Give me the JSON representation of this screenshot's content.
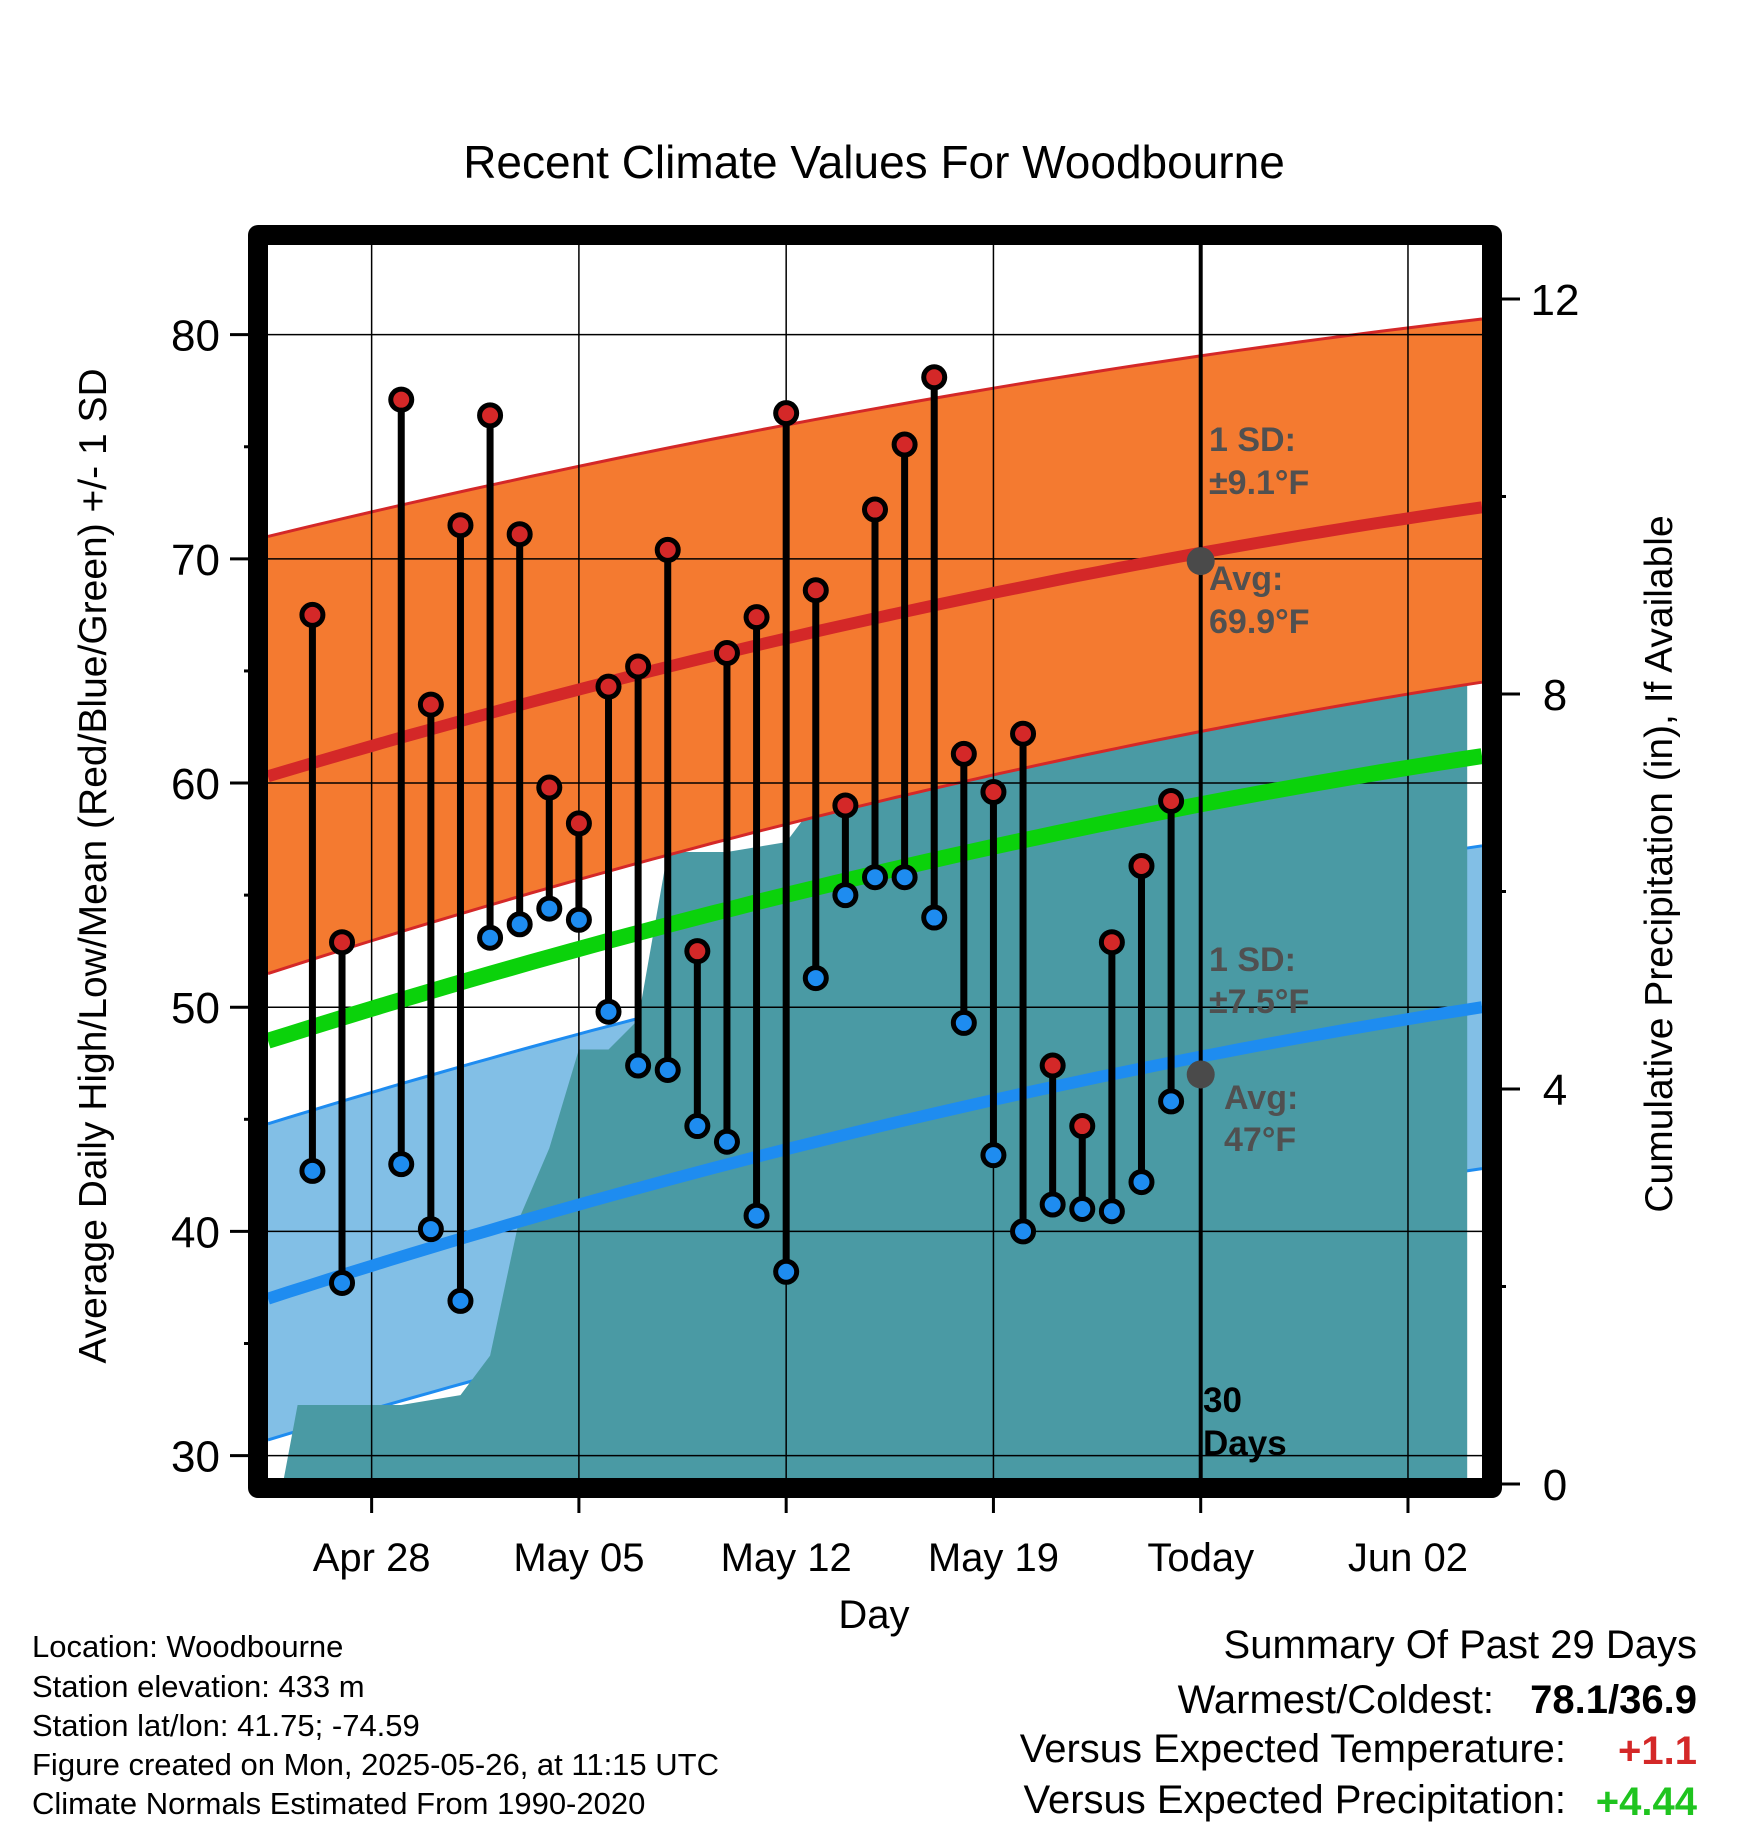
{
  "chart_data": {
    "type": "line",
    "title": "Recent Climate Values For Woodbourne",
    "xlabel": "Day",
    "ylabel_left": "Average Daily High/Low/Mean (Red/Blue/Green) +/- 1 SD",
    "ylabel_right": "Cumulative Precipitation (in), If Available",
    "x_tick_labels": [
      "Apr 28",
      "May 05",
      "May 12",
      "May 19",
      "Today",
      "Jun 02"
    ],
    "x_tick_days": [
      3,
      10,
      17,
      24,
      31,
      38
    ],
    "xlim_days": [
      -0.5,
      40.5
    ],
    "ylim_left": [
      29,
      84
    ],
    "y_left_ticks": [
      30,
      40,
      50,
      60,
      70,
      80
    ],
    "ylim_right": [
      0,
      20
    ],
    "y_right_ticks": [
      0,
      4,
      8,
      12
    ],
    "today_day": 31,
    "days_label": [
      "30",
      "Days"
    ],
    "colors": {
      "high_band": "#f47a30",
      "high_line": "#d42828",
      "low_band": "#82bfe6",
      "low_line": "#1e8cf0",
      "mean_line": "#0bd20b",
      "precip": "#4a9aa4",
      "high_marker": "#d42828",
      "low_marker": "#1e8cf0",
      "annotation": "#505050"
    },
    "normals": {
      "avg_high": {
        "start": 60.3,
        "end": 72.3
      },
      "high_sd_upper": {
        "start": 71.0,
        "end": 80.7
      },
      "high_sd_lower": {
        "start": 51.5,
        "end": 64.5
      },
      "avg_low": {
        "start": 37.0,
        "end": 50.0
      },
      "low_sd_upper": {
        "start": 44.8,
        "end": 57.2
      },
      "low_sd_lower": {
        "start": 30.7,
        "end": 42.8
      },
      "avg_mean": {
        "start": 48.5,
        "end": 61.2
      }
    },
    "annotations": {
      "high_sd_label": "1 SD:",
      "high_sd_value": "±9.1°F",
      "high_avg_label": "Avg:",
      "high_avg_value": "69.9°F",
      "low_sd_label": "1 SD:",
      "low_sd_value": "±7.5°F",
      "low_avg_label": "Avg:",
      "low_avg_value": "47°F",
      "today_high_avg": 69.9,
      "today_low_avg": 47.0
    },
    "series": [
      {
        "name": "High",
        "days": [
          1,
          2,
          4,
          5,
          6,
          7,
          8,
          9,
          10,
          11,
          12,
          13,
          14,
          15,
          16,
          17,
          18,
          19,
          20,
          21,
          22,
          23,
          24,
          25,
          26,
          27,
          28,
          29,
          30
        ],
        "values": [
          67.5,
          52.9,
          77.1,
          63.5,
          71.5,
          76.4,
          71.1,
          59.8,
          58.2,
          64.3,
          65.2,
          70.4,
          52.5,
          65.8,
          67.4,
          76.5,
          68.6,
          59.0,
          72.2,
          75.1,
          78.1,
          61.3,
          59.6,
          62.2,
          47.4,
          44.7,
          52.9,
          56.3,
          59.2
        ]
      },
      {
        "name": "Low",
        "days": [
          1,
          2,
          4,
          5,
          6,
          7,
          8,
          9,
          10,
          11,
          12,
          13,
          14,
          15,
          16,
          17,
          18,
          19,
          20,
          21,
          22,
          23,
          24,
          25,
          26,
          27,
          28,
          29,
          30
        ],
        "values": [
          42.7,
          37.7,
          43.0,
          40.1,
          36.9,
          53.1,
          53.7,
          54.4,
          53.9,
          49.8,
          47.4,
          47.2,
          44.7,
          44.0,
          40.7,
          38.2,
          51.3,
          55.0,
          55.8,
          55.8,
          54.0,
          49.3,
          43.4,
          40.0,
          41.2,
          41.0,
          40.9,
          42.2,
          45.8
        ]
      },
      {
        "name": "Cumulative Precipitation",
        "days": [
          0,
          0.5,
          4,
          6,
          7,
          8,
          9,
          10,
          11,
          12,
          13,
          14,
          15,
          17,
          18,
          19,
          20,
          22,
          24,
          25,
          26,
          27,
          28,
          31,
          40
        ],
        "values": [
          0,
          0.8,
          0.8,
          0.9,
          1.3,
          2.7,
          3.4,
          4.4,
          4.4,
          4.7,
          6.4,
          6.4,
          6.4,
          6.5,
          6.9,
          7.2,
          7.2,
          7.2,
          7.2,
          7.3,
          7.8,
          8.2,
          8.2,
          8.2,
          8.2
        ]
      }
    ]
  },
  "location_info": {
    "location": "Location: Woodbourne",
    "elevation": "Station elevation: 433 m",
    "latlon": "Station lat/lon: 41.75; -74.59",
    "created": "Figure created on Mon, 2025-05-26, at 11:15 UTC",
    "normals": "Climate Normals Estimated From 1990-2020"
  },
  "summary": {
    "title": "Summary Of Past 29 Days",
    "warm_cold_label": "Warmest/Coldest:",
    "warm_cold_value": "78.1/36.9",
    "temp_label": "Versus Expected Temperature:",
    "temp_value": "+1.1",
    "temp_color": "#d42828",
    "precip_label": "Versus Expected Precipitation:",
    "precip_value": "+4.44",
    "precip_color": "#1fc41f"
  }
}
